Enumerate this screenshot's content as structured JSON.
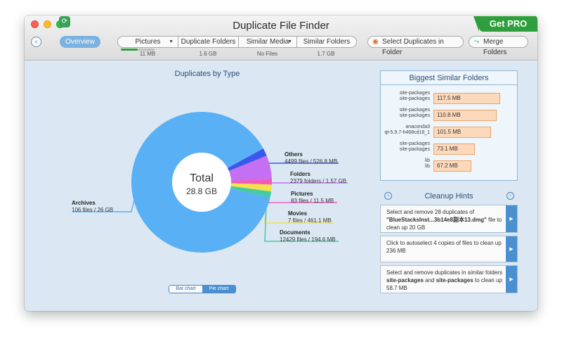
{
  "window": {
    "title": "Duplicate File Finder",
    "pro_label": "Get PRO"
  },
  "toolbar": {
    "back_label": "‹",
    "overview_label": "Overview",
    "segments": [
      {
        "label": "Pictures",
        "size": "11 MB",
        "has_menu": true
      },
      {
        "label": "Duplicate Folders",
        "size": "1.6 GB",
        "has_menu": false
      },
      {
        "label": "Similar Media",
        "size": "No Files",
        "has_menu": true
      },
      {
        "label": "Similar Folders",
        "size": "1.7 GB",
        "has_menu": false
      }
    ],
    "pictures_progress": 0.5,
    "select_duplicates_label": "Select Duplicates in Folder",
    "merge_folders_label": "Merge Folders"
  },
  "chart": {
    "title": "Duplicates by Type",
    "total_label": "Total",
    "total_value": "28.8 GB",
    "toggle_bar": "Bar chart",
    "toggle_pie": "Pie chart"
  },
  "chart_data": {
    "type": "pie",
    "title": "Duplicates by Type",
    "center_label": "Total 28.8 GB",
    "slices": [
      {
        "name": "Archives",
        "detail": "106 files / 26 GB",
        "value": 26,
        "color": "#5ab0f5"
      },
      {
        "name": "Others",
        "detail": "4499 files / 526.8 MB",
        "value": 0.5268,
        "color": "#3b57f0"
      },
      {
        "name": "Folders",
        "detail": "2379 folders / 1.57 GB",
        "value": 1.57,
        "color": "#c56ff2"
      },
      {
        "name": "Pictures",
        "detail": "83 files / 11.5 MB",
        "value": 0.0115,
        "color": "#f05bbd"
      },
      {
        "name": "Movies",
        "detail": "7 files / 461.1 MB",
        "value": 0.4611,
        "color": "#f2e34b"
      },
      {
        "name": "Documents",
        "detail": "12429 files / 194.6 MB",
        "value": 0.1946,
        "color": "#46c9a5"
      }
    ]
  },
  "biggest_folders": {
    "title": "Biggest Similar Folders",
    "rows": [
      {
        "names": [
          "site-packages",
          "site-packages"
        ],
        "size": "117.5 MB",
        "value": 117.5
      },
      {
        "names": [
          "site-packages",
          "site-packages"
        ],
        "size": "110.8 MB",
        "value": 110.8
      },
      {
        "names": [
          "anaconda3",
          "qt-5.9.7-h468cd18_1"
        ],
        "size": "101.5 MB",
        "value": 101.5
      },
      {
        "names": [
          "site-packages",
          "site-packages"
        ],
        "size": "73.1 MB",
        "value": 73.1
      },
      {
        "names": [
          "lib",
          "lib"
        ],
        "size": "67.2 MB",
        "value": 67.2
      }
    ]
  },
  "hints": {
    "title": "Cleanup Hints",
    "prev_label": "‹",
    "next_label": "›",
    "cards": [
      {
        "parts": [
          "Select and remove 28 duplicates of ",
          "\"BlueStacksInst...3b14e8副本13.dmg\"",
          " file to clean up 20 GB"
        ]
      },
      {
        "parts": [
          "Click to autoselect 4 copies of files to clean up 236 MB"
        ]
      },
      {
        "parts": [
          "Select and remove duplicates in similar folders ",
          "site-packages",
          " and ",
          "site-packages",
          " to clean up 58.7 MB"
        ]
      }
    ]
  }
}
